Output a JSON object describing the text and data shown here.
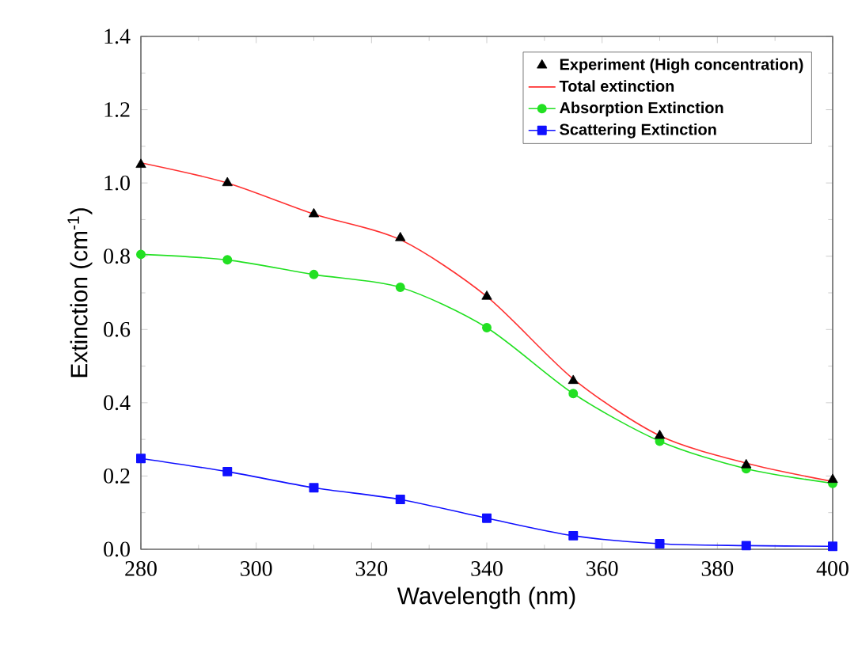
{
  "chart_data": {
    "type": "line",
    "xlabel": "Wavelength (nm)",
    "ylabel": "Extinction (cm$^{-1}$)",
    "x": [
      280,
      295,
      310,
      325,
      340,
      355,
      370,
      385,
      400
    ],
    "series": [
      {
        "name": "Experiment (High concentration)",
        "type": "scatter",
        "color": "#000000",
        "marker": "triangle",
        "values": [
          1.05,
          1.0,
          0.915,
          0.85,
          0.69,
          0.46,
          0.31,
          0.23,
          0.19
        ]
      },
      {
        "name": "Total extinction",
        "color": "#ff3030",
        "marker": "none",
        "values": [
          1.055,
          1.0,
          0.915,
          0.845,
          0.69,
          0.465,
          0.31,
          0.235,
          0.185
        ]
      },
      {
        "name": "Absorption Extinction",
        "color": "#22e022",
        "marker": "circle",
        "values": [
          0.805,
          0.79,
          0.75,
          0.715,
          0.605,
          0.425,
          0.295,
          0.22,
          0.18
        ]
      },
      {
        "name": "Scattering Extinction",
        "color": "#1010ff",
        "marker": "square",
        "values": [
          0.248,
          0.212,
          0.168,
          0.136,
          0.085,
          0.037,
          0.015,
          0.01,
          0.008
        ]
      }
    ],
    "xlim": [
      280,
      400
    ],
    "ylim": [
      0,
      1.4
    ],
    "xticks": [
      280,
      300,
      320,
      340,
      360,
      380,
      400
    ],
    "yticks": [
      {
        "value": 0,
        "label": "0.0"
      },
      {
        "value": 0.2,
        "label": "0.2"
      },
      {
        "value": 0.4,
        "label": "0.4"
      },
      {
        "value": 0.6,
        "label": "0.6"
      },
      {
        "value": 0.8,
        "label": "0.8"
      },
      {
        "value": 1.0,
        "label": "1.0"
      },
      {
        "value": 1.2,
        "label": "1.2"
      },
      {
        "value": 1.4,
        "label": "1.4"
      }
    ],
    "grid": false,
    "legend": "top right"
  }
}
